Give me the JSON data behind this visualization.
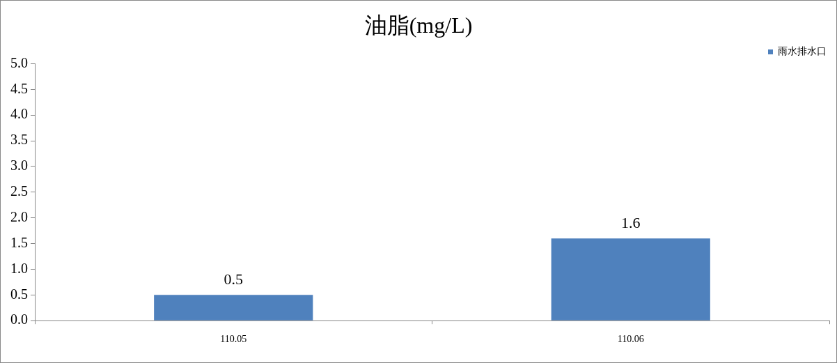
{
  "chart_data": {
    "type": "bar",
    "title": "油脂(mg/L)",
    "categories": [
      "110.05",
      "110.06"
    ],
    "series": [
      {
        "name": "雨水排水口",
        "color": "#4f81bd",
        "values": [
          0.5,
          1.6
        ]
      }
    ],
    "ylim": [
      0,
      5
    ],
    "yticks": [
      {
        "value": 0,
        "label": "0.0"
      },
      {
        "value": 0.5,
        "label": "0.5"
      },
      {
        "value": 1,
        "label": "1.0"
      },
      {
        "value": 1.5,
        "label": "1.5"
      },
      {
        "value": 2,
        "label": "2.0"
      },
      {
        "value": 2.5,
        "label": "2.5"
      },
      {
        "value": 3,
        "label": "3.0"
      },
      {
        "value": 3.5,
        "label": "3.5"
      },
      {
        "value": 4,
        "label": "4.0"
      },
      {
        "value": 4.5,
        "label": "4.5"
      },
      {
        "value": 5,
        "label": "5.0"
      }
    ],
    "grid": false,
    "legend": "top right",
    "data_labels": true
  }
}
